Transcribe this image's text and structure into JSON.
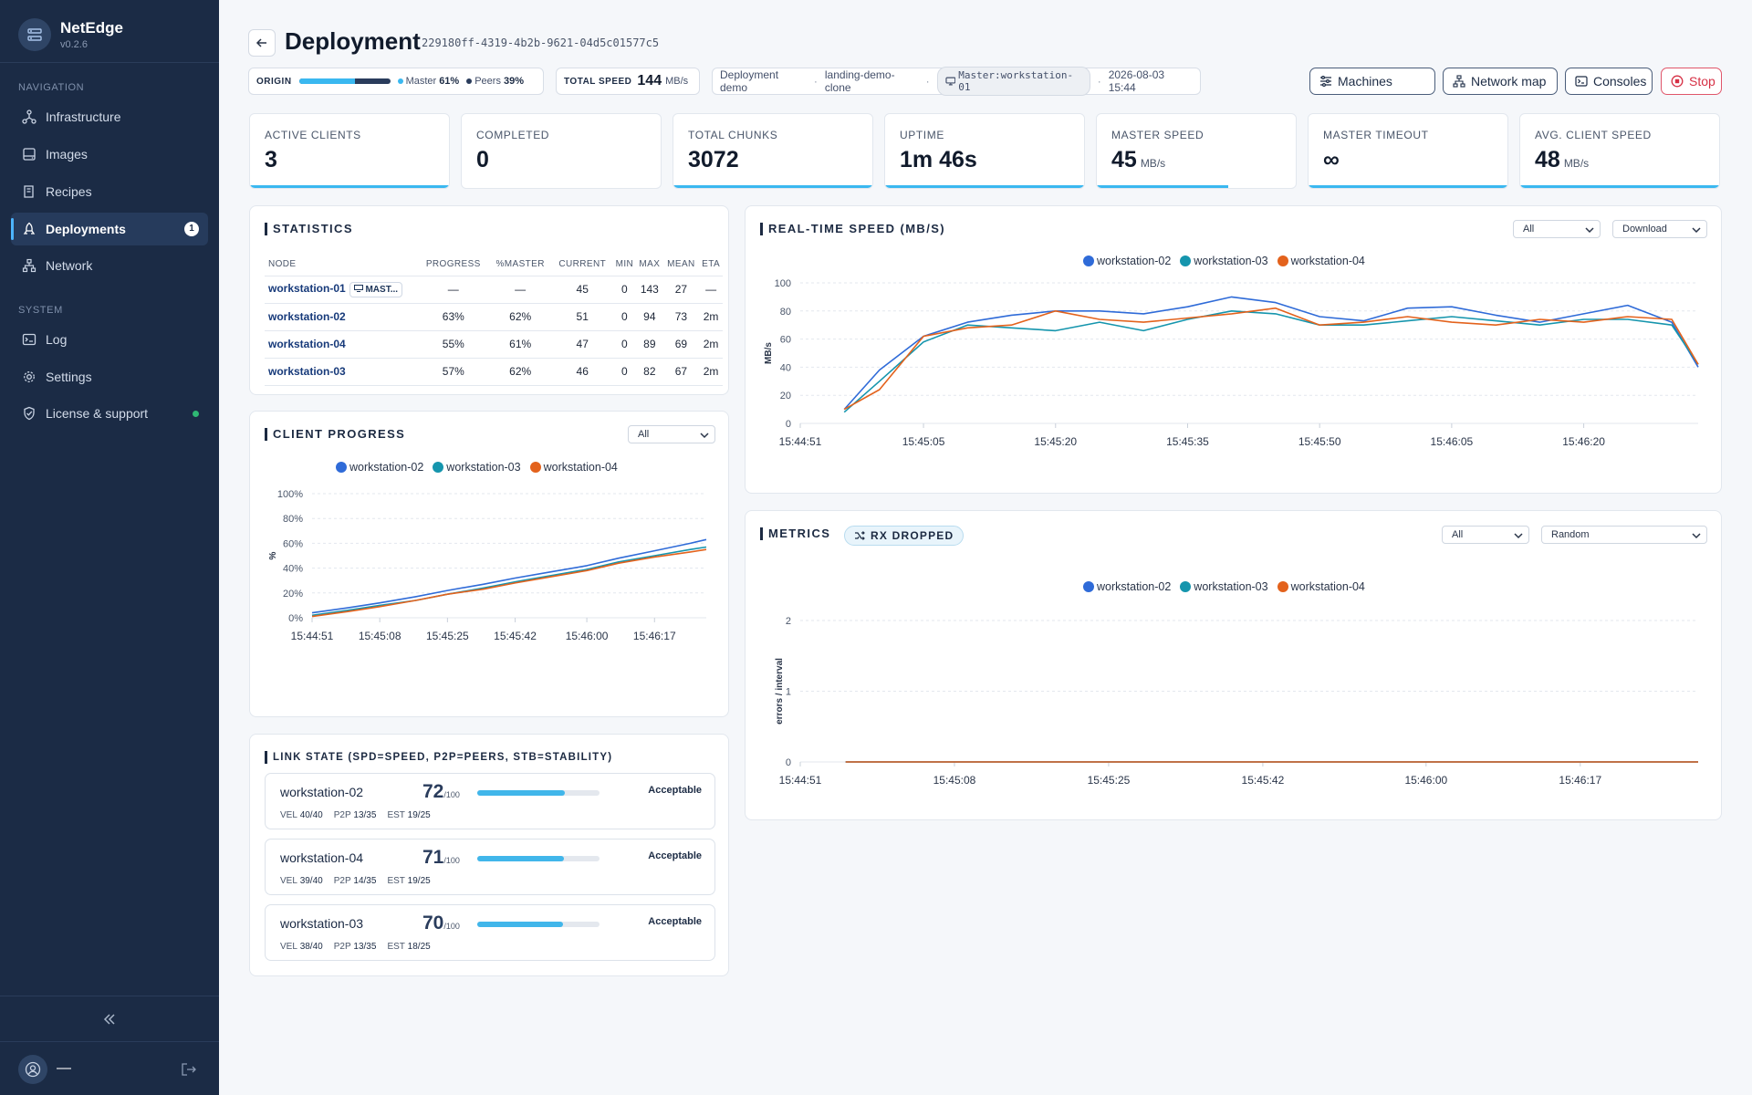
{
  "app": {
    "name": "NetEdge",
    "version": "v0.2.6"
  },
  "sidebar": {
    "navigation_label": "NAVIGATION",
    "system_label": "SYSTEM",
    "nav": [
      {
        "label": "Infrastructure"
      },
      {
        "label": "Images"
      },
      {
        "label": "Recipes"
      },
      {
        "label": "Deployments",
        "badge": "1",
        "active": true
      },
      {
        "label": "Network"
      }
    ],
    "system": [
      {
        "label": "Log"
      },
      {
        "label": "Settings"
      },
      {
        "label": "License & support",
        "status": "green"
      }
    ],
    "user": "—"
  },
  "header": {
    "title": "Deployment",
    "id": "229180ff-4319-4b2b-9621-04d5c01577c5",
    "origin_label": "ORIGIN",
    "origin_master_label": "Master",
    "origin_master_pct": "61%",
    "origin_peers_label": "Peers",
    "origin_peers_pct": "39%",
    "origin_master_fraction": 0.61,
    "total_speed_label": "TOTAL SPEED",
    "total_speed_value": "144",
    "total_speed_unit": "MB/s",
    "info_name": "Deployment demo",
    "info_recipe": "landing-demo-clone",
    "info_master": "Master:workstation-01",
    "info_date": "2026-08-03 15:44",
    "buttons": {
      "machines": "Machines",
      "network_map": "Network map",
      "consoles": "Consoles",
      "stop": "Stop"
    }
  },
  "stats": [
    {
      "label": "ACTIVE CLIENTS",
      "value": "3",
      "unit": "",
      "bar_fraction": 1.0
    },
    {
      "label": "COMPLETED",
      "value": "0",
      "unit": "",
      "bar_fraction": 0
    },
    {
      "label": "TOTAL CHUNKS",
      "value": "3072",
      "unit": "",
      "bar_fraction": 1.0
    },
    {
      "label": "UPTIME",
      "value": "1m 46s",
      "unit": "",
      "bar_fraction": 1.0
    },
    {
      "label": "MASTER SPEED",
      "value": "45",
      "unit": "MB/s",
      "bar_fraction": 0.66
    },
    {
      "label": "MASTER TIMEOUT",
      "value": "∞",
      "unit": "",
      "bar_fraction": 1.0
    },
    {
      "label": "AVG. CLIENT SPEED",
      "value": "48",
      "unit": "MB/s",
      "bar_fraction": 1.0
    }
  ],
  "statistics": {
    "title": "STATISTICS",
    "columns": [
      "NODE",
      "PROGRESS",
      "%MASTER",
      "CURRENT",
      "MIN",
      "MAX",
      "MEAN",
      "ETA"
    ],
    "master_tag": "MAST...",
    "rows": [
      [
        "workstation-01",
        "—",
        "—",
        "45",
        "0",
        "143",
        "27",
        "—"
      ],
      [
        "workstation-02",
        "63%",
        "62%",
        "51",
        "0",
        "94",
        "73",
        "2m"
      ],
      [
        "workstation-04",
        "55%",
        "61%",
        "47",
        "0",
        "89",
        "69",
        "2m"
      ],
      [
        "workstation-03",
        "57%",
        "62%",
        "46",
        "0",
        "82",
        "67",
        "2m"
      ]
    ]
  },
  "client_progress": {
    "title": "CLIENT PROGRESS",
    "filter": "All"
  },
  "realtime": {
    "title": "REAL-TIME SPEED (MB/S)",
    "filter": "All",
    "mode": "Download"
  },
  "metrics": {
    "title": "METRICS",
    "badge": "RX DROPPED",
    "filter": "All",
    "mode": "Random"
  },
  "link_state": {
    "title": "LINK STATE (SPD=SPEED, P2P=PEERS, STB=STABILITY)",
    "cards": [
      {
        "name": "workstation-02",
        "score": "72",
        "max": "/100",
        "fraction": 0.72,
        "status": "Acceptable",
        "vel": "40/40",
        "p2p": "13/35",
        "est": "19/25"
      },
      {
        "name": "workstation-04",
        "score": "71",
        "max": "/100",
        "fraction": 0.71,
        "status": "Acceptable",
        "vel": "39/40",
        "p2p": "14/35",
        "est": "19/25"
      },
      {
        "name": "workstation-03",
        "score": "70",
        "max": "/100",
        "fraction": 0.7,
        "status": "Acceptable",
        "vel": "38/40",
        "p2p": "13/35",
        "est": "18/25"
      }
    ]
  },
  "chart_data": [
    {
      "type": "line",
      "title": "CLIENT PROGRESS",
      "ylabel": "%",
      "xlabel": "",
      "ylim": [
        0,
        100
      ],
      "yticks": [
        "0%",
        "20%",
        "40%",
        "60%",
        "80%",
        "100%"
      ],
      "xticks": [
        "15:44:51",
        "15:45:08",
        "15:45:25",
        "15:45:42",
        "15:46:00",
        "15:46:17"
      ],
      "x": [
        "15:44:51",
        "15:45:00",
        "15:45:08",
        "15:45:17",
        "15:45:25",
        "15:45:34",
        "15:45:42",
        "15:45:51",
        "15:46:00",
        "15:46:08",
        "15:46:17",
        "15:46:26",
        "15:46:30"
      ],
      "series": [
        {
          "name": "workstation-02",
          "color": "#2f6bd8",
          "values": [
            4,
            8,
            12,
            17,
            22,
            27,
            32,
            37,
            42,
            48,
            54,
            60,
            63
          ]
        },
        {
          "name": "workstation-03",
          "color": "#1595ad",
          "values": [
            2,
            6,
            10,
            14,
            19,
            24,
            29,
            34,
            39,
            45,
            50,
            55,
            57
          ]
        },
        {
          "name": "workstation-04",
          "color": "#e3621c",
          "values": [
            1,
            5,
            9,
            14,
            19,
            23,
            28,
            33,
            38,
            44,
            49,
            53,
            55
          ]
        }
      ],
      "grid": true
    },
    {
      "type": "line",
      "title": "REAL-TIME SPEED (MB/S)",
      "ylabel": "MB/s",
      "xlabel": "",
      "ylim": [
        0,
        100
      ],
      "yticks": [
        "0",
        "20",
        "40",
        "60",
        "80",
        "100"
      ],
      "xticks": [
        "15:44:51",
        "15:45:05",
        "15:45:20",
        "15:45:35",
        "15:45:50",
        "15:46:05",
        "15:46:20"
      ],
      "x": [
        "15:44:56",
        "15:45:00",
        "15:45:05",
        "15:45:10",
        "15:45:15",
        "15:45:20",
        "15:45:25",
        "15:45:30",
        "15:45:35",
        "15:45:40",
        "15:45:45",
        "15:45:50",
        "15:45:55",
        "15:46:00",
        "15:46:05",
        "15:46:10",
        "15:46:15",
        "15:46:20",
        "15:46:25",
        "15:46:30",
        "15:46:33"
      ],
      "series": [
        {
          "name": "workstation-02",
          "color": "#2f6bd8",
          "values": [
            10,
            38,
            62,
            72,
            77,
            80,
            80,
            78,
            83,
            90,
            86,
            76,
            73,
            82,
            83,
            77,
            72,
            78,
            84,
            72,
            40
          ]
        },
        {
          "name": "workstation-03",
          "color": "#1595ad",
          "values": null,
          "values_list": [
            8,
            30,
            58,
            70,
            68,
            66,
            72,
            66,
            74,
            80,
            78,
            70,
            70,
            73,
            76,
            73,
            70,
            74,
            74,
            70,
            42
          ]
        },
        {
          "name": "workstation-04",
          "color": "#e3621c",
          "values": [
            10,
            24,
            62,
            68,
            70,
            80,
            74,
            72,
            75,
            78,
            82,
            70,
            72,
            76,
            72,
            70,
            74,
            72,
            76,
            74,
            42
          ]
        }
      ],
      "grid": true
    },
    {
      "type": "line",
      "title": "METRICS",
      "ylabel": "errors / interval",
      "xlabel": "",
      "ylim": [
        0,
        2
      ],
      "yticks": [
        "0",
        "1",
        "2"
      ],
      "xticks": [
        "15:44:51",
        "15:45:08",
        "15:45:25",
        "15:45:42",
        "15:46:00",
        "15:46:17"
      ],
      "x": [
        "15:44:56",
        "15:46:30"
      ],
      "series": [
        {
          "name": "workstation-02",
          "color": "#2f6bd8",
          "values": [
            0,
            0
          ]
        },
        {
          "name": "workstation-03",
          "color": "#1595ad",
          "values": [
            0,
            0
          ]
        },
        {
          "name": "workstation-04",
          "color": "#e3621c",
          "values": [
            0,
            0
          ]
        }
      ],
      "grid": true
    }
  ]
}
